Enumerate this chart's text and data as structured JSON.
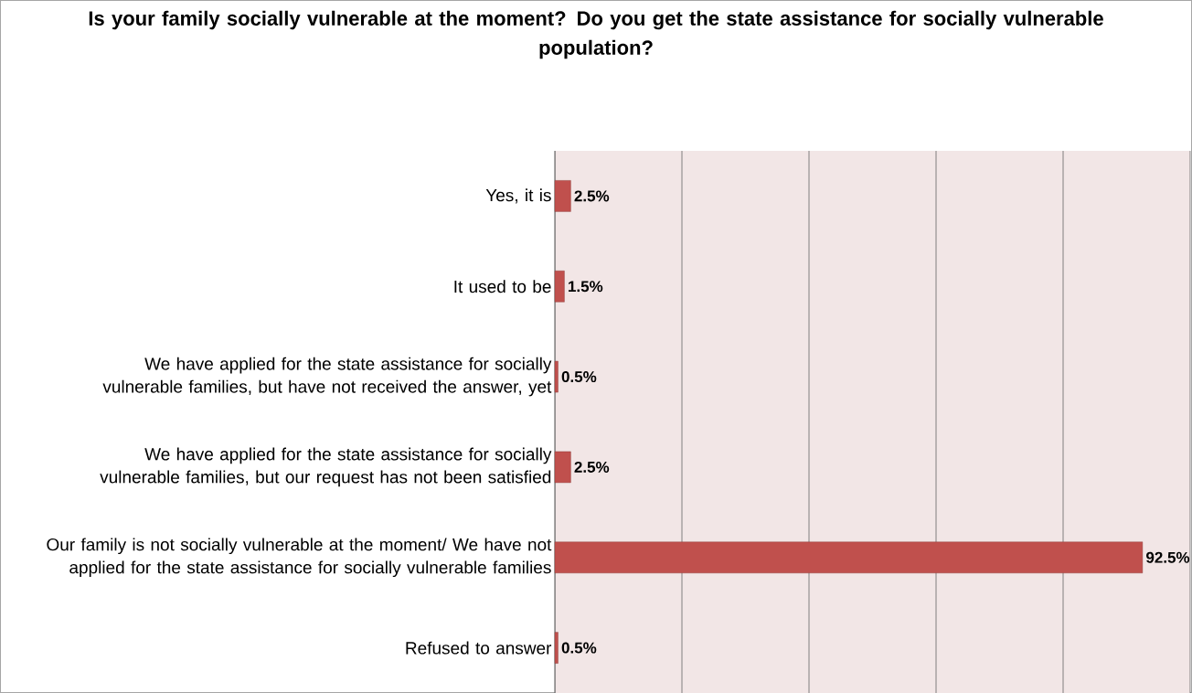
{
  "chart_data": {
    "type": "bar",
    "orientation": "horizontal",
    "title": "Is your family  socially vulnerable at the moment? Do you get the state assistance for socially vulnerable population?",
    "categories": [
      "Yes, it is",
      "It used to be",
      "We have applied for the state assistance for socially vulnerable families, but have not received the answer, yet",
      "We have applied for the state assistance for socially vulnerable families, but our request has not been satisfied",
      "Our family  is not socially vulnerable at the moment/ We have not applied for the state assistance for socially vulnerable families",
      "Refused to answer"
    ],
    "values": [
      2.5,
      1.5,
      0.5,
      2.5,
      92.5,
      0.5
    ],
    "value_labels": [
      "2.5%",
      "1.5%",
      "0.5%",
      "2.5%",
      "92.5%",
      "0.5%"
    ],
    "color": "#c0504d",
    "xlim": [
      0,
      100
    ],
    "xticks": [
      {
        "value": 0,
        "label": null
      },
      {
        "value": 20,
        "label": null
      },
      {
        "value": 40,
        "label": null
      },
      {
        "value": 60,
        "label": null
      },
      {
        "value": 80,
        "label": null
      },
      {
        "value": 100,
        "label": null
      }
    ],
    "grid": "x",
    "tick_labels": "y",
    "legend": false
  }
}
